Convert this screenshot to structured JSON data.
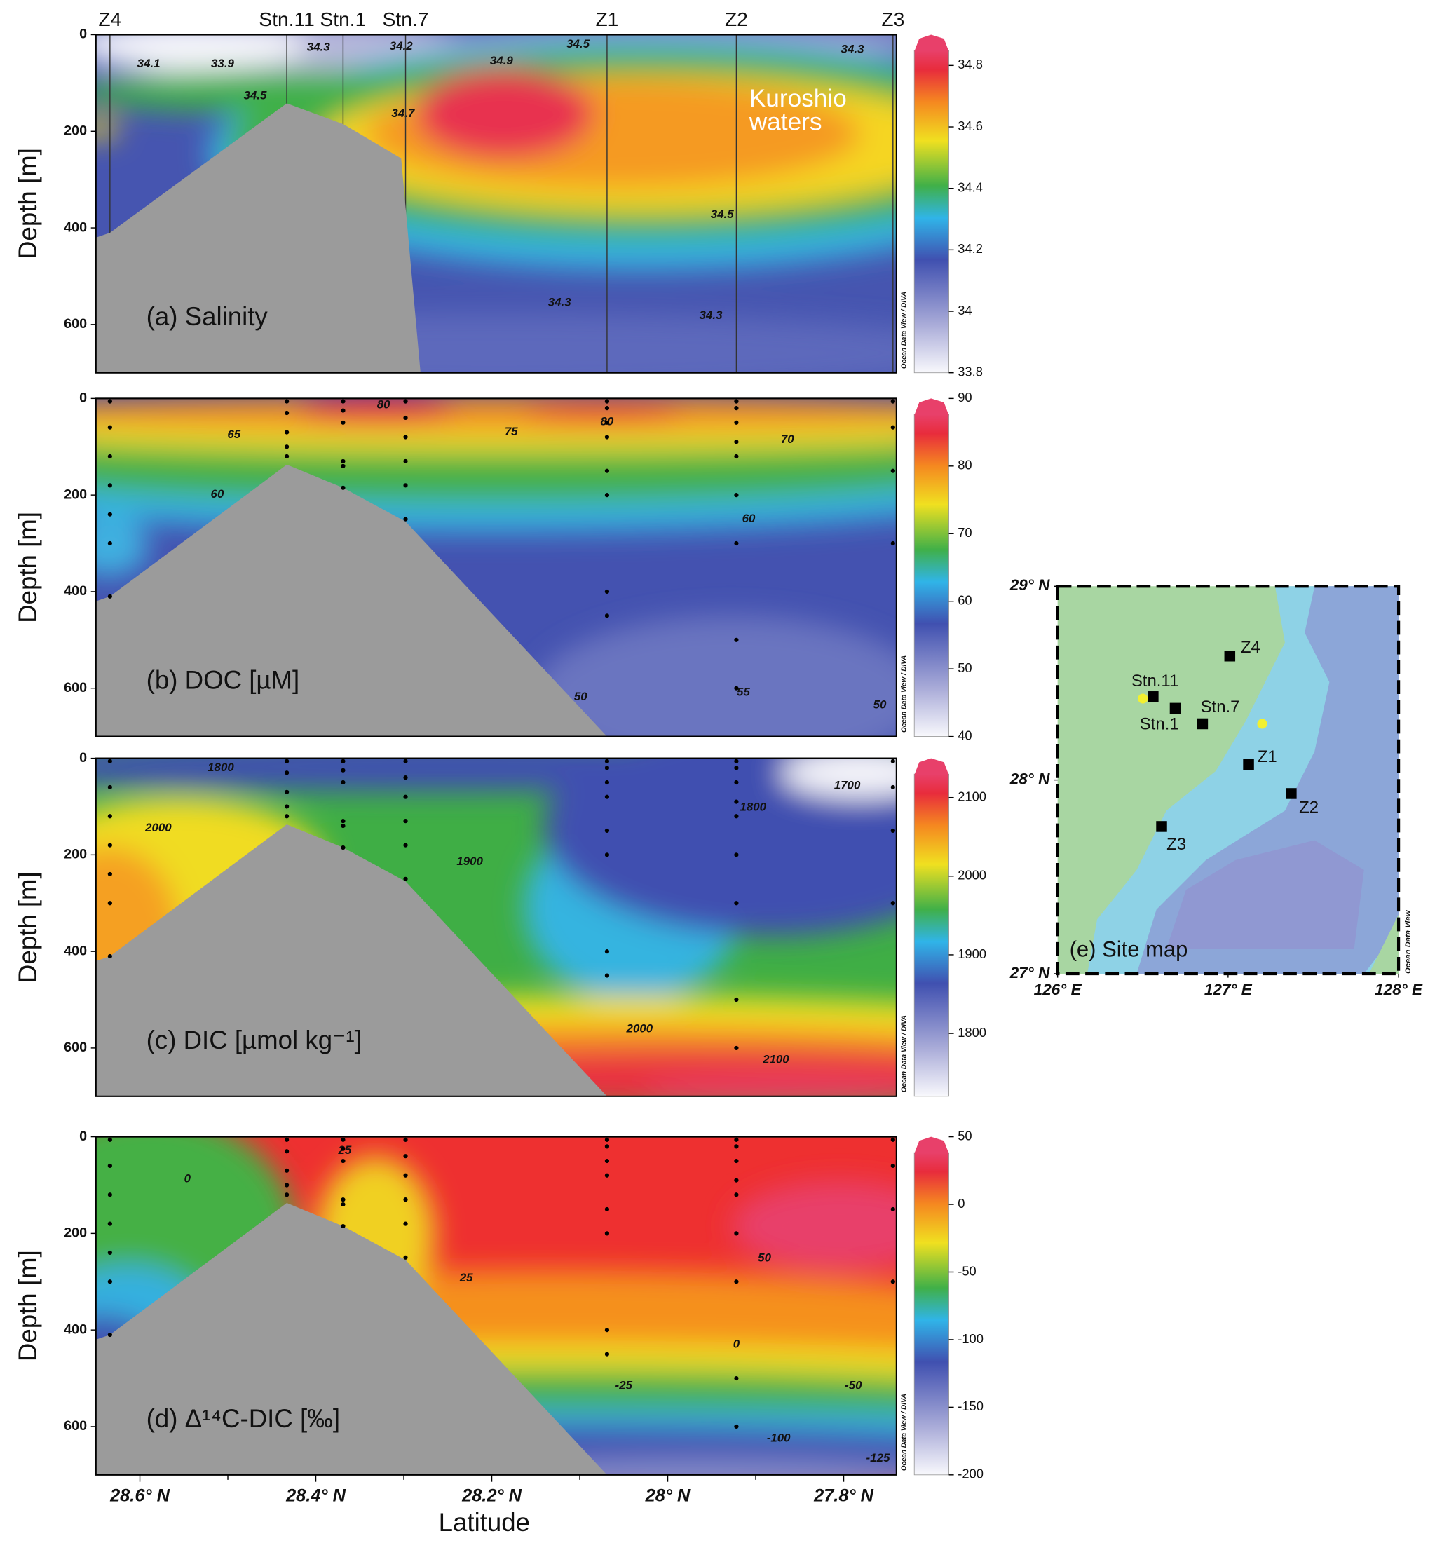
{
  "chart_data": [
    {
      "type": "contour",
      "label": "(a) Salinity",
      "ylabel": "Depth [m]",
      "xlim": [
        28.65,
        27.74
      ],
      "ylim": [
        0,
        700
      ],
      "yticks": [
        0,
        200,
        400,
        600
      ],
      "stations": {
        "names": [
          "Z4",
          "Stn.11",
          "Stn.1",
          "Stn.7",
          "Z1",
          "Z2",
          "Z3"
        ],
        "lat": [
          28.634,
          28.433,
          28.369,
          28.298,
          28.069,
          27.922,
          27.744
        ]
      },
      "bottom": {
        "lat": [
          28.65,
          28.634,
          28.433,
          28.369,
          28.303,
          28.281,
          28.65
        ],
        "depth": [
          420,
          410,
          142,
          185,
          256,
          700,
          700
        ]
      },
      "colorbar": {
        "lim": [
          33.8,
          34.9
        ],
        "ticks": [
          33.8,
          34,
          34.2,
          34.4,
          34.6,
          34.8
        ]
      },
      "contours": [
        {
          "value": "34.1",
          "lat": 28.59,
          "depth": 61
        },
        {
          "value": "33.9",
          "lat": 28.506,
          "depth": 61
        },
        {
          "value": "34.5",
          "lat": 28.469,
          "depth": 127
        },
        {
          "value": "34.3",
          "lat": 28.397,
          "depth": 27
        },
        {
          "value": "34.2",
          "lat": 28.303,
          "depth": 25
        },
        {
          "value": "34.7",
          "lat": 28.301,
          "depth": 164
        },
        {
          "value": "34.9",
          "lat": 28.189,
          "depth": 55
        },
        {
          "value": "34.5",
          "lat": 28.102,
          "depth": 20
        },
        {
          "value": "34.5",
          "lat": 27.938,
          "depth": 373
        },
        {
          "value": "34.3",
          "lat": 28.123,
          "depth": 555
        },
        {
          "value": "34.3",
          "lat": 27.951,
          "depth": 582
        },
        {
          "value": "34.3",
          "lat": 27.79,
          "depth": 31
        }
      ],
      "annotations": [
        "Kuroshio",
        "waters"
      ],
      "watermark": "Ocean Data View / DIVA"
    },
    {
      "type": "contour",
      "label": "(b) DOC [µM]",
      "ylabel": "Depth [m]",
      "xlim": [
        28.65,
        27.74
      ],
      "ylim": [
        0,
        700
      ],
      "yticks": [
        0,
        200,
        400,
        600
      ],
      "bottom": {
        "lat": [
          28.65,
          28.634,
          28.433,
          28.369,
          28.298,
          28.069,
          28.65
        ],
        "depth": [
          420,
          410,
          137,
          185,
          255,
          700,
          700
        ]
      },
      "samples": [
        [
          5,
          60,
          120,
          180,
          240,
          300,
          410
        ],
        [
          5,
          30,
          70,
          100,
          120
        ],
        [
          5,
          25,
          50,
          130,
          140,
          185
        ],
        [
          5,
          40,
          80,
          130,
          180,
          250
        ],
        [
          5,
          20,
          50,
          80,
          150,
          200,
          400,
          450
        ],
        [
          5,
          20,
          50,
          90,
          120,
          200,
          300,
          500,
          600
        ],
        [
          5,
          60,
          150,
          300
        ]
      ],
      "colorbar": {
        "lim": [
          40,
          90
        ],
        "ticks": [
          40,
          50,
          60,
          70,
          80,
          90
        ]
      },
      "contours": [
        {
          "value": "80",
          "lat": 28.323,
          "depth": 14
        },
        {
          "value": "80",
          "lat": 28.069,
          "depth": 49
        },
        {
          "value": "65",
          "lat": 28.493,
          "depth": 76
        },
        {
          "value": "75",
          "lat": 28.178,
          "depth": 70
        },
        {
          "value": "70",
          "lat": 27.864,
          "depth": 86
        },
        {
          "value": "60",
          "lat": 28.512,
          "depth": 199
        },
        {
          "value": "60",
          "lat": 27.908,
          "depth": 250
        },
        {
          "value": "55",
          "lat": 27.914,
          "depth": 609
        },
        {
          "value": "50",
          "lat": 28.099,
          "depth": 619
        },
        {
          "value": "50",
          "lat": 27.759,
          "depth": 635
        }
      ],
      "watermark": "Ocean Data View / DIVA"
    },
    {
      "type": "contour",
      "label": "(c) DIC [µmol kg⁻¹]",
      "ylabel": "Depth [m]",
      "xlim": [
        28.65,
        27.74
      ],
      "ylim": [
        0,
        700
      ],
      "yticks": [
        0,
        200,
        400,
        600
      ],
      "bottom": {
        "lat": [
          28.65,
          28.634,
          28.433,
          28.369,
          28.298,
          28.069,
          28.65
        ],
        "depth": [
          420,
          410,
          137,
          185,
          255,
          700,
          700
        ]
      },
      "colorbar": {
        "lim": [
          1720,
          2150
        ],
        "ticks": [
          1800,
          1900,
          2000,
          2100
        ]
      },
      "contours": [
        {
          "value": "1800",
          "lat": 28.508,
          "depth": 20
        },
        {
          "value": "2000",
          "lat": 28.579,
          "depth": 145
        },
        {
          "value": "1900",
          "lat": 28.225,
          "depth": 215
        },
        {
          "value": "1800",
          "lat": 27.903,
          "depth": 102
        },
        {
          "value": "1700",
          "lat": 27.796,
          "depth": 57
        },
        {
          "value": "2000",
          "lat": 28.032,
          "depth": 561
        },
        {
          "value": "2100",
          "lat": 27.877,
          "depth": 625
        }
      ],
      "watermark": "Ocean Data View / DIVA"
    },
    {
      "type": "contour",
      "label": "(d) Δ¹⁴C-DIC [‰]",
      "ylabel": "Depth [m]",
      "xlabel": "Latitude",
      "xlim": [
        28.65,
        27.74
      ],
      "ylim": [
        0,
        700
      ],
      "yticks": [
        0,
        200,
        400,
        600
      ],
      "xticks": [
        {
          "value": 28.6,
          "label": "28.6° N"
        },
        {
          "value": 28.4,
          "label": "28.4° N"
        },
        {
          "value": 28.2,
          "label": "28.2° N"
        },
        {
          "value": 28,
          "label": "28° N"
        },
        {
          "value": 27.8,
          "label": "27.8° N"
        }
      ],
      "xminor": [
        28.5,
        28.3,
        28.1,
        27.9
      ],
      "bottom": {
        "lat": [
          28.65,
          28.634,
          28.433,
          28.369,
          28.298,
          28.069,
          28.65
        ],
        "depth": [
          420,
          410,
          137,
          185,
          255,
          700,
          700
        ]
      },
      "colorbar": {
        "lim": [
          -200,
          50
        ],
        "ticks": [
          -200,
          -150,
          -100,
          -50,
          0,
          50
        ]
      },
      "contours": [
        {
          "value": "25",
          "lat": 28.367,
          "depth": 29
        },
        {
          "value": "0",
          "lat": 28.546,
          "depth": 88
        },
        {
          "value": "25",
          "lat": 28.229,
          "depth": 293
        },
        {
          "value": "50",
          "lat": 27.89,
          "depth": 252
        },
        {
          "value": "0",
          "lat": 27.922,
          "depth": 430
        },
        {
          "value": "-25",
          "lat": 28.05,
          "depth": 516
        },
        {
          "value": "-50",
          "lat": 27.789,
          "depth": 516
        },
        {
          "value": "-100",
          "lat": 27.874,
          "depth": 625
        },
        {
          "value": "-125",
          "lat": 27.761,
          "depth": 666
        }
      ],
      "watermark": "Ocean Data View / DIVA"
    },
    {
      "type": "map",
      "label": "(e) Site map",
      "watermark": "Ocean Data View",
      "xlim": [
        126,
        128
      ],
      "ylim": [
        27,
        29
      ],
      "xticks": [
        {
          "value": 126,
          "label": "126° E"
        },
        {
          "value": 127,
          "label": "127° E"
        },
        {
          "value": 128,
          "label": "128° E"
        }
      ],
      "yticks": [
        {
          "value": 27,
          "label": "27° N"
        },
        {
          "value": 28,
          "label": "28° N"
        },
        {
          "value": 29,
          "label": "29° N"
        }
      ],
      "sites": {
        "names": [
          "Z4",
          "Stn.11",
          "Stn.1",
          "Stn.7",
          "Z1",
          "Z2",
          "Z3"
        ],
        "lon": [
          127.01,
          126.56,
          126.69,
          126.85,
          127.12,
          127.37,
          126.61
        ],
        "lat": [
          28.64,
          28.43,
          28.37,
          28.29,
          28.08,
          27.93,
          27.76
        ]
      },
      "other_sites": {
        "lon": [
          126.5,
          127.2
        ],
        "lat": [
          28.42,
          28.29
        ]
      }
    }
  ]
}
